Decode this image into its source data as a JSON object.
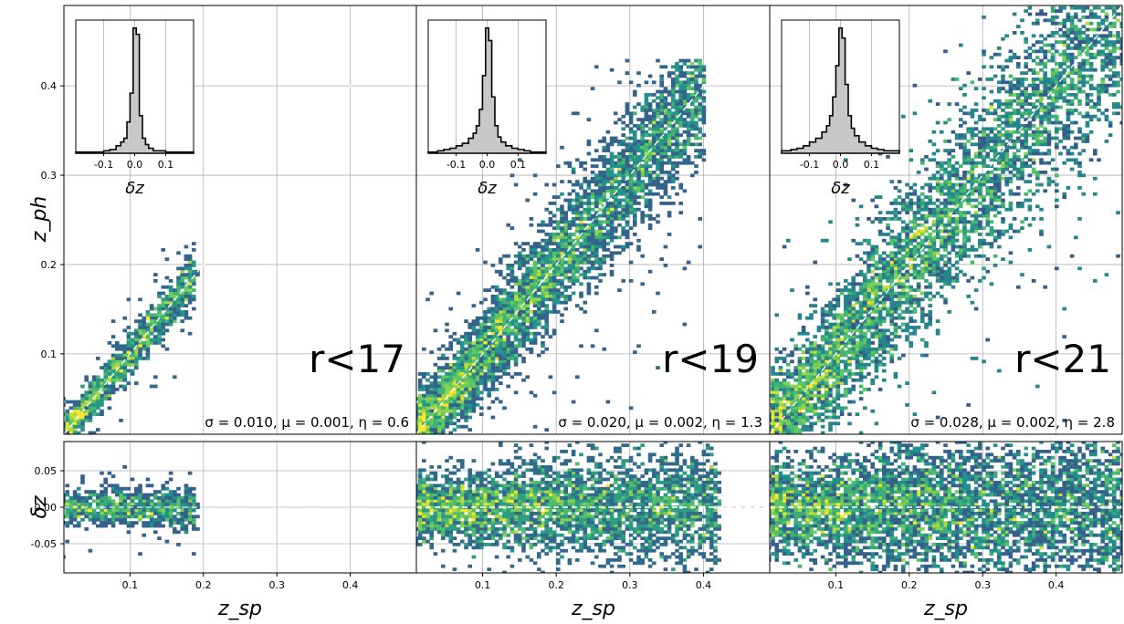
{
  "figure": {
    "ylabel_top": "z_ph",
    "ylabel_bottom": "δz",
    "xlabel": "z_sp",
    "inset_xlabel": "δz"
  },
  "chart_data": [
    {
      "type": "heatmap",
      "panel": "top",
      "magnitude_cut": "r<17",
      "stats": {
        "sigma": 0.01,
        "mu": 0.001,
        "eta": 0.6
      },
      "stats_text": "σ = 0.010, μ = 0.001, η = 0.6",
      "xlim": [
        0.01,
        0.49
      ],
      "ylim": [
        0.01,
        0.49
      ],
      "x_ticks": [
        0.1,
        0.2,
        0.3,
        0.4
      ],
      "y_ticks": [
        0.1,
        0.2,
        0.3,
        0.4
      ],
      "y_tick_labels": [
        "0.1",
        "0.2",
        "0.3",
        "0.4"
      ],
      "diagonal_line": "z_ph = z_sp (white dashed)",
      "data_extent": {
        "x_range": [
          0.01,
          0.19
        ],
        "y_range": [
          0.01,
          0.23
        ]
      },
      "inset_histogram": {
        "xlabel": "δz",
        "x_ticks": [
          -0.1,
          0.0,
          0.1
        ],
        "x_tick_labels": [
          "-0.1",
          "0.0",
          "0.1"
        ],
        "xlim": [
          -0.19,
          0.19
        ],
        "bin_centers": [
          -0.17,
          -0.15,
          -0.13,
          -0.11,
          -0.09,
          -0.07,
          -0.05,
          -0.04,
          -0.03,
          -0.02,
          -0.01,
          0.0,
          0.01,
          0.02,
          0.03,
          0.04,
          0.05,
          0.07,
          0.09,
          0.11,
          0.13,
          0.15,
          0.17
        ],
        "counts": [
          0.01,
          0.01,
          0.01,
          0.01,
          0.02,
          0.03,
          0.06,
          0.09,
          0.12,
          0.25,
          0.48,
          1.0,
          0.95,
          0.3,
          0.12,
          0.07,
          0.04,
          0.02,
          0.02,
          0.01,
          0.01,
          0.01,
          0.01
        ]
      }
    },
    {
      "type": "heatmap",
      "panel": "top",
      "magnitude_cut": "r<19",
      "stats": {
        "sigma": 0.02,
        "mu": 0.002,
        "eta": 1.3
      },
      "stats_text": "σ = 0.020, μ = 0.002, η = 1.3",
      "xlim": [
        0.01,
        0.49
      ],
      "ylim": [
        0.01,
        0.49
      ],
      "x_ticks": [
        0.1,
        0.2,
        0.3,
        0.4
      ],
      "y_ticks": [
        0.1,
        0.2,
        0.3,
        0.4
      ],
      "diagonal_line": "z_ph = z_sp (white dashed)",
      "data_extent": {
        "x_range": [
          0.01,
          0.4
        ],
        "y_range": [
          0.01,
          0.43
        ]
      },
      "inset_histogram": {
        "xlabel": "δz",
        "x_ticks": [
          -0.1,
          0.0,
          0.1
        ],
        "x_tick_labels": [
          "-0.1",
          "0.0",
          "0.1"
        ],
        "xlim": [
          -0.19,
          0.19
        ],
        "bin_centers": [
          -0.17,
          -0.15,
          -0.13,
          -0.11,
          -0.09,
          -0.07,
          -0.05,
          -0.04,
          -0.03,
          -0.02,
          -0.01,
          0.0,
          0.01,
          0.02,
          0.03,
          0.04,
          0.05,
          0.07,
          0.09,
          0.11,
          0.13,
          0.15,
          0.17
        ],
        "counts": [
          0.01,
          0.02,
          0.03,
          0.04,
          0.06,
          0.08,
          0.12,
          0.16,
          0.22,
          0.35,
          0.62,
          1.0,
          0.9,
          0.45,
          0.22,
          0.13,
          0.09,
          0.06,
          0.04,
          0.03,
          0.02,
          0.01,
          0.01
        ]
      }
    },
    {
      "type": "heatmap",
      "panel": "top",
      "magnitude_cut": "r<21",
      "stats": {
        "sigma": 0.028,
        "mu": 0.002,
        "eta": 2.8
      },
      "stats_text": "σ = 0.028, μ = 0.002, η = 2.8",
      "xlim": [
        0.01,
        0.49
      ],
      "ylim": [
        0.01,
        0.49
      ],
      "x_ticks": [
        0.1,
        0.2,
        0.3,
        0.4
      ],
      "y_ticks": [
        0.1,
        0.2,
        0.3,
        0.4
      ],
      "diagonal_line": "z_ph = z_sp (white dashed)",
      "data_extent": {
        "x_range": [
          0.01,
          0.49
        ],
        "y_range": [
          0.01,
          0.49
        ]
      },
      "inset_histogram": {
        "xlabel": "δz",
        "x_ticks": [
          -0.1,
          0.0,
          0.1
        ],
        "x_tick_labels": [
          "-0.1",
          "0.0",
          "0.1"
        ],
        "xlim": [
          -0.19,
          0.19
        ],
        "bin_centers": [
          -0.17,
          -0.15,
          -0.13,
          -0.11,
          -0.09,
          -0.07,
          -0.05,
          -0.04,
          -0.03,
          -0.02,
          -0.01,
          0.0,
          0.01,
          0.02,
          0.03,
          0.04,
          0.05,
          0.07,
          0.09,
          0.11,
          0.13,
          0.15,
          0.17
        ],
        "counts": [
          0.02,
          0.03,
          0.04,
          0.06,
          0.09,
          0.12,
          0.17,
          0.22,
          0.3,
          0.45,
          0.7,
          1.0,
          0.92,
          0.55,
          0.3,
          0.2,
          0.14,
          0.09,
          0.06,
          0.04,
          0.03,
          0.02,
          0.02
        ]
      }
    },
    {
      "type": "heatmap",
      "panel": "bottom",
      "magnitude_cut": "r<17",
      "xlim": [
        0.01,
        0.49
      ],
      "ylim": [
        -0.09,
        0.09
      ],
      "x_ticks": [
        0.1,
        0.2,
        0.3,
        0.4
      ],
      "x_tick_labels": [
        "0.1",
        "0.2",
        "0.3",
        "0.4"
      ],
      "y_ticks": [
        -0.05,
        0.0,
        0.05
      ],
      "y_tick_labels": [
        "-0.05",
        "0.00",
        "0.05"
      ],
      "zero_line": "δz = 0 (white dashed)",
      "data_extent": {
        "x_range": [
          0.01,
          0.19
        ],
        "y_range": [
          -0.07,
          0.05
        ]
      }
    },
    {
      "type": "heatmap",
      "panel": "bottom",
      "magnitude_cut": "r<19",
      "xlim": [
        0.01,
        0.49
      ],
      "ylim": [
        -0.09,
        0.09
      ],
      "x_ticks": [
        0.1,
        0.2,
        0.3,
        0.4
      ],
      "x_tick_labels": [
        "0.1",
        "0.2",
        "0.3",
        "0.4"
      ],
      "y_ticks": [
        -0.05,
        0.0,
        0.05
      ],
      "zero_line": "δz = 0 (white dashed)",
      "data_extent": {
        "x_range": [
          0.01,
          0.42
        ],
        "y_range": [
          -0.09,
          0.09
        ]
      }
    },
    {
      "type": "heatmap",
      "panel": "bottom",
      "magnitude_cut": "r<21",
      "xlim": [
        0.01,
        0.49
      ],
      "ylim": [
        -0.09,
        0.09
      ],
      "x_ticks": [
        0.1,
        0.2,
        0.3,
        0.4
      ],
      "x_tick_labels": [
        "0.1",
        "0.2",
        "0.3",
        "0.4"
      ],
      "y_ticks": [
        -0.05,
        0.0,
        0.05
      ],
      "zero_line": "δz = 0 (white dashed)",
      "data_extent": {
        "x_range": [
          0.01,
          0.49
        ],
        "y_range": [
          -0.09,
          0.09
        ]
      }
    }
  ],
  "colors": {
    "cmap": [
      "#440154",
      "#3b528b",
      "#21918c",
      "#5ec962",
      "#fde725"
    ],
    "hist_fill": "#c8c8c8",
    "hist_edge": "#000000",
    "reference_line": "#ffffff"
  }
}
